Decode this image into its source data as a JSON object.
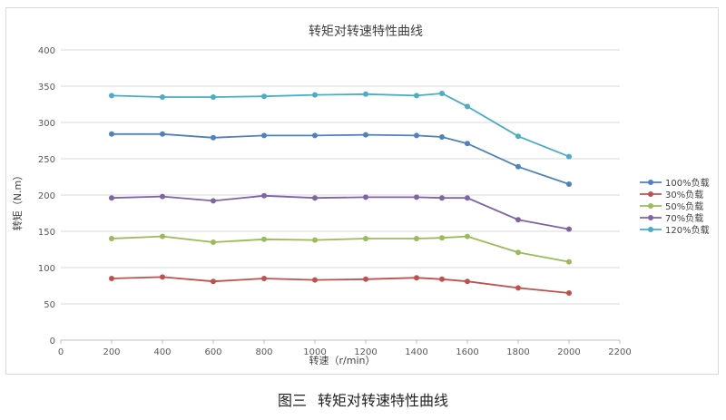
{
  "caption": {
    "number": "图三",
    "text": "转矩对转速特性曲线"
  },
  "chart_data": {
    "type": "line",
    "title": "转矩对转速特性曲线",
    "xlabel": "转速（r/min）",
    "ylabel": "转矩（N.m）",
    "xlim": [
      0,
      2200
    ],
    "ylim": [
      0,
      400
    ],
    "xticks": [
      "0",
      "200",
      "400",
      "600",
      "800",
      "1000",
      "1200",
      "1400",
      "1600",
      "1800",
      "2000",
      "2200"
    ],
    "yticks": [
      "0",
      "50",
      "100",
      "150",
      "200",
      "250",
      "300",
      "350",
      "400"
    ],
    "grid": "horizontal",
    "legend": "right",
    "x": [
      200,
      400,
      600,
      800,
      1000,
      1200,
      1400,
      1500,
      1600,
      1800,
      2000
    ],
    "series": [
      {
        "name": "100%负载",
        "color": "#4f81bd",
        "values": [
          284,
          284,
          279,
          282,
          282,
          283,
          282,
          280,
          271,
          239,
          215
        ]
      },
      {
        "name": "30%负载",
        "color": "#c0504d",
        "values": [
          85,
          87,
          81,
          85,
          83,
          84,
          86,
          84,
          81,
          72,
          65
        ]
      },
      {
        "name": "50%负载",
        "color": "#9bbb59",
        "values": [
          140,
          143,
          135,
          139,
          138,
          140,
          140,
          141,
          143,
          121,
          108
        ]
      },
      {
        "name": "70%负载",
        "color": "#8064a2",
        "values": [
          196,
          198,
          192,
          199,
          196,
          197,
          197,
          196,
          196,
          166,
          153
        ]
      },
      {
        "name": "120%负载",
        "color": "#4bacc6",
        "values": [
          337,
          335,
          335,
          336,
          338,
          339,
          337,
          340,
          322,
          281,
          253
        ]
      }
    ]
  }
}
